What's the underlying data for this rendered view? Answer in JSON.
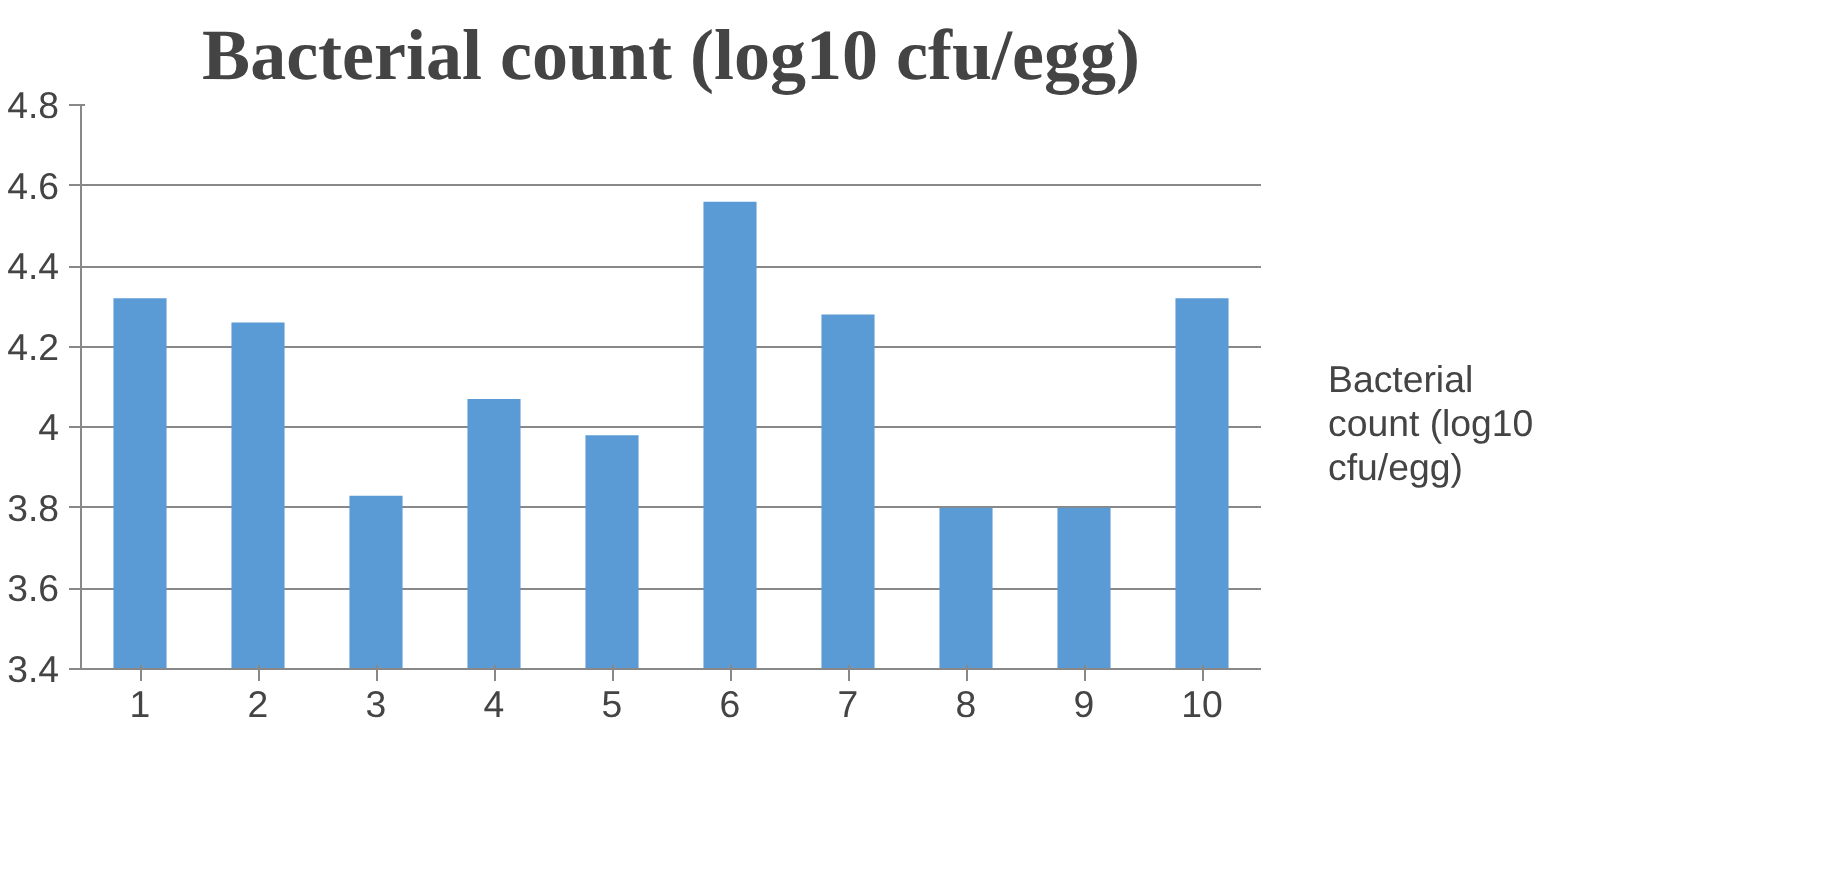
{
  "chart_data": {
    "type": "bar",
    "title": "Bacterial count (log10 cfu/egg)",
    "categories": [
      "1",
      "2",
      "3",
      "4",
      "5",
      "6",
      "7",
      "8",
      "9",
      "10"
    ],
    "series": [
      {
        "name": "Bacterial count (log10 cfu/egg)",
        "color": "#5b9bd5",
        "values": [
          4.32,
          4.26,
          3.83,
          4.07,
          3.98,
          4.56,
          4.28,
          3.8,
          3.8,
          4.32
        ]
      }
    ],
    "ylim": [
      3.4,
      4.8
    ],
    "yticks": [
      3.4,
      3.6,
      3.8,
      4,
      4.2,
      4.4,
      4.6,
      4.8
    ],
    "grid": "y",
    "legend": "right"
  }
}
